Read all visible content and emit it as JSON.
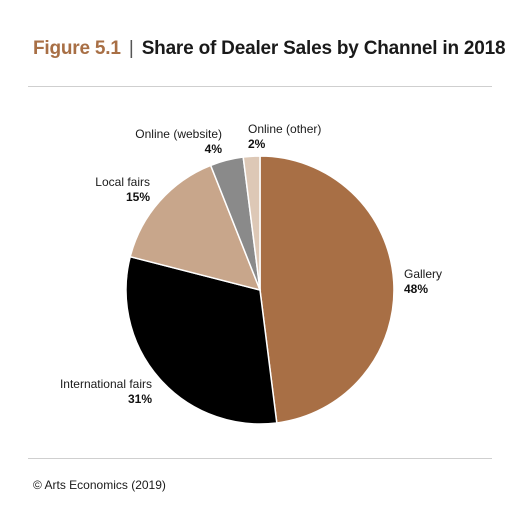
{
  "figure": {
    "label": "Figure 5.1",
    "separator": "|",
    "title": "Share of Dealer Sales by Channel in 2018"
  },
  "source": "© Arts Economics (2019)",
  "chart_data": {
    "type": "pie",
    "title": "Share of Dealer Sales by Channel in 2018",
    "start_angle_deg": 0,
    "direction": "clockwise",
    "slices": [
      {
        "label": "Gallery",
        "value": 48,
        "value_label": "48%",
        "color": "#a86f45"
      },
      {
        "label": "International fairs",
        "value": 31,
        "value_label": "31%",
        "color": "#000000"
      },
      {
        "label": "Local fairs",
        "value": 15,
        "value_label": "15%",
        "color": "#c8a68b"
      },
      {
        "label": "Online (website)",
        "value": 4,
        "value_label": "4%",
        "color": "#8a8a8a"
      },
      {
        "label": "Online (other)",
        "value": 2,
        "value_label": "2%",
        "color": "#ddc8b6"
      }
    ]
  }
}
